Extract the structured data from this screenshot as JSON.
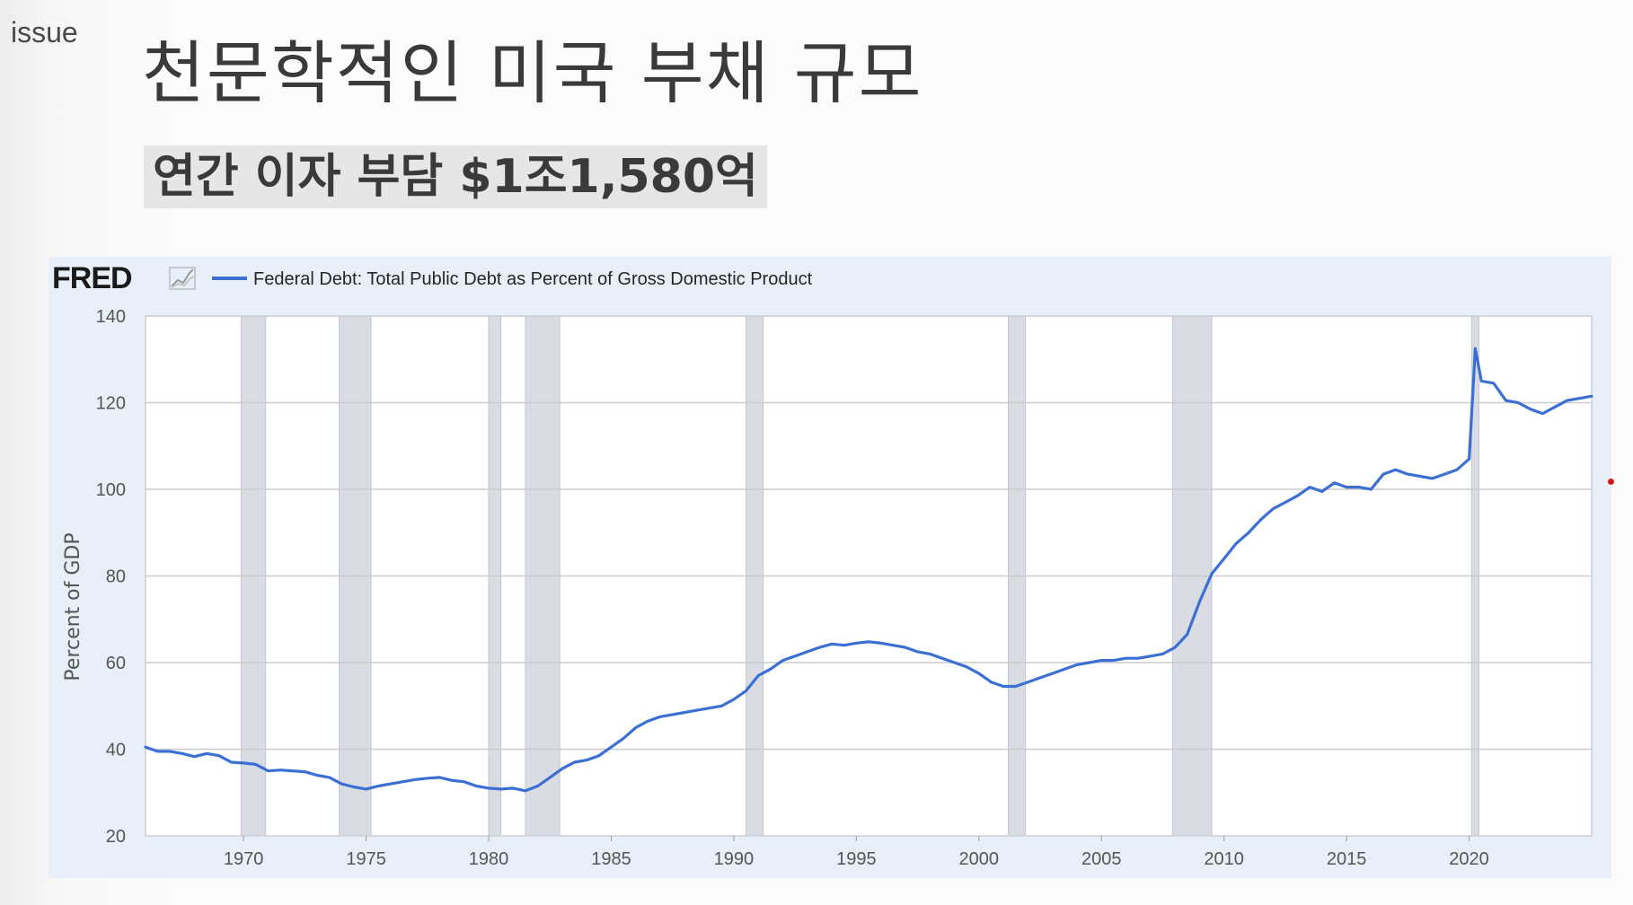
{
  "slide": {
    "tag": "issue",
    "title": "천문학적인 미국 부채 규모",
    "subtitle": "연간 이자 부담 $1조1,580억"
  },
  "colors": {
    "line": "#3b6fd4",
    "recession": "#d9dde3",
    "panel": "#e8eff8",
    "grid": "#cccccc"
  },
  "chart_data": {
    "type": "line",
    "source_logo": "FRED",
    "title": "",
    "legend": "Federal Debt: Total Public Debt as Percent of Gross Domestic Product",
    "legend_position": "top-left",
    "xlabel": "",
    "ylabel": "Percent of GDP",
    "xlim": [
      1966.0,
      2025.0
    ],
    "ylim": [
      20,
      140
    ],
    "y_ticks": [
      20,
      40,
      60,
      80,
      100,
      120,
      140
    ],
    "x_ticks": [
      1970,
      1975,
      1980,
      1985,
      1990,
      1995,
      2000,
      2005,
      2010,
      2015,
      2020
    ],
    "grid": true,
    "recessions": [
      [
        1969.9,
        1970.9
      ],
      [
        1973.9,
        1975.2
      ],
      [
        1980.0,
        1980.5
      ],
      [
        1981.5,
        1982.9
      ],
      [
        1990.5,
        1991.2
      ],
      [
        2001.2,
        2001.9
      ],
      [
        2007.9,
        2009.5
      ],
      [
        2020.1,
        2020.4
      ]
    ],
    "series": [
      {
        "name": "Federal Debt: Total Public Debt as Percent of Gross Domestic Product",
        "points": [
          [
            1966.0,
            40.5
          ],
          [
            1966.5,
            39.5
          ],
          [
            1967.0,
            39.5
          ],
          [
            1967.5,
            39.0
          ],
          [
            1968.0,
            38.3
          ],
          [
            1968.5,
            39.0
          ],
          [
            1969.0,
            38.5
          ],
          [
            1969.5,
            37.0
          ],
          [
            1970.0,
            36.8
          ],
          [
            1970.5,
            36.5
          ],
          [
            1971.0,
            35.0
          ],
          [
            1971.5,
            35.2
          ],
          [
            1972.0,
            35.0
          ],
          [
            1972.5,
            34.8
          ],
          [
            1973.0,
            34.0
          ],
          [
            1973.5,
            33.5
          ],
          [
            1974.0,
            32.0
          ],
          [
            1974.5,
            31.3
          ],
          [
            1975.0,
            30.8
          ],
          [
            1975.5,
            31.5
          ],
          [
            1976.0,
            32.0
          ],
          [
            1976.5,
            32.5
          ],
          [
            1977.0,
            33.0
          ],
          [
            1977.5,
            33.3
          ],
          [
            1978.0,
            33.5
          ],
          [
            1978.5,
            32.8
          ],
          [
            1979.0,
            32.5
          ],
          [
            1979.5,
            31.5
          ],
          [
            1980.0,
            31.0
          ],
          [
            1980.5,
            30.8
          ],
          [
            1981.0,
            31.0
          ],
          [
            1981.5,
            30.4
          ],
          [
            1982.0,
            31.5
          ],
          [
            1982.5,
            33.5
          ],
          [
            1983.0,
            35.5
          ],
          [
            1983.5,
            37.0
          ],
          [
            1984.0,
            37.5
          ],
          [
            1984.5,
            38.5
          ],
          [
            1985.0,
            40.5
          ],
          [
            1985.5,
            42.5
          ],
          [
            1986.0,
            45.0
          ],
          [
            1986.5,
            46.5
          ],
          [
            1987.0,
            47.5
          ],
          [
            1987.5,
            48.0
          ],
          [
            1988.0,
            48.5
          ],
          [
            1988.5,
            49.0
          ],
          [
            1989.0,
            49.5
          ],
          [
            1989.5,
            50.0
          ],
          [
            1990.0,
            51.5
          ],
          [
            1990.5,
            53.5
          ],
          [
            1991.0,
            57.0
          ],
          [
            1991.5,
            58.5
          ],
          [
            1992.0,
            60.5
          ],
          [
            1992.5,
            61.5
          ],
          [
            1993.0,
            62.5
          ],
          [
            1993.5,
            63.5
          ],
          [
            1994.0,
            64.3
          ],
          [
            1994.5,
            64.0
          ],
          [
            1995.0,
            64.5
          ],
          [
            1995.5,
            64.8
          ],
          [
            1996.0,
            64.5
          ],
          [
            1996.5,
            64.0
          ],
          [
            1997.0,
            63.5
          ],
          [
            1997.5,
            62.5
          ],
          [
            1998.0,
            62.0
          ],
          [
            1998.5,
            61.0
          ],
          [
            1999.0,
            60.0
          ],
          [
            1999.5,
            59.0
          ],
          [
            2000.0,
            57.5
          ],
          [
            2000.5,
            55.5
          ],
          [
            2001.0,
            54.5
          ],
          [
            2001.5,
            54.5
          ],
          [
            2002.0,
            55.5
          ],
          [
            2002.5,
            56.5
          ],
          [
            2003.0,
            57.5
          ],
          [
            2003.5,
            58.5
          ],
          [
            2004.0,
            59.5
          ],
          [
            2004.5,
            60.0
          ],
          [
            2005.0,
            60.5
          ],
          [
            2005.5,
            60.5
          ],
          [
            2006.0,
            61.0
          ],
          [
            2006.5,
            61.0
          ],
          [
            2007.0,
            61.5
          ],
          [
            2007.5,
            62.0
          ],
          [
            2008.0,
            63.5
          ],
          [
            2008.5,
            66.5
          ],
          [
            2009.0,
            74.0
          ],
          [
            2009.5,
            80.5
          ],
          [
            2010.0,
            84.0
          ],
          [
            2010.5,
            87.5
          ],
          [
            2011.0,
            90.0
          ],
          [
            2011.5,
            93.0
          ],
          [
            2012.0,
            95.5
          ],
          [
            2012.5,
            97.0
          ],
          [
            2013.0,
            98.5
          ],
          [
            2013.5,
            100.5
          ],
          [
            2014.0,
            99.5
          ],
          [
            2014.5,
            101.5
          ],
          [
            2015.0,
            100.5
          ],
          [
            2015.5,
            100.5
          ],
          [
            2016.0,
            100.0
          ],
          [
            2016.5,
            103.5
          ],
          [
            2017.0,
            104.5
          ],
          [
            2017.5,
            103.5
          ],
          [
            2018.0,
            103.0
          ],
          [
            2018.5,
            102.5
          ],
          [
            2019.0,
            103.5
          ],
          [
            2019.5,
            104.5
          ],
          [
            2020.0,
            107.0
          ],
          [
            2020.25,
            132.5
          ],
          [
            2020.5,
            125.0
          ],
          [
            2021.0,
            124.5
          ],
          [
            2021.5,
            120.5
          ],
          [
            2022.0,
            120.0
          ],
          [
            2022.5,
            118.5
          ],
          [
            2023.0,
            117.5
          ],
          [
            2023.5,
            119.0
          ],
          [
            2024.0,
            120.5
          ],
          [
            2024.5,
            121.0
          ],
          [
            2025.0,
            121.5
          ]
        ]
      }
    ]
  }
}
